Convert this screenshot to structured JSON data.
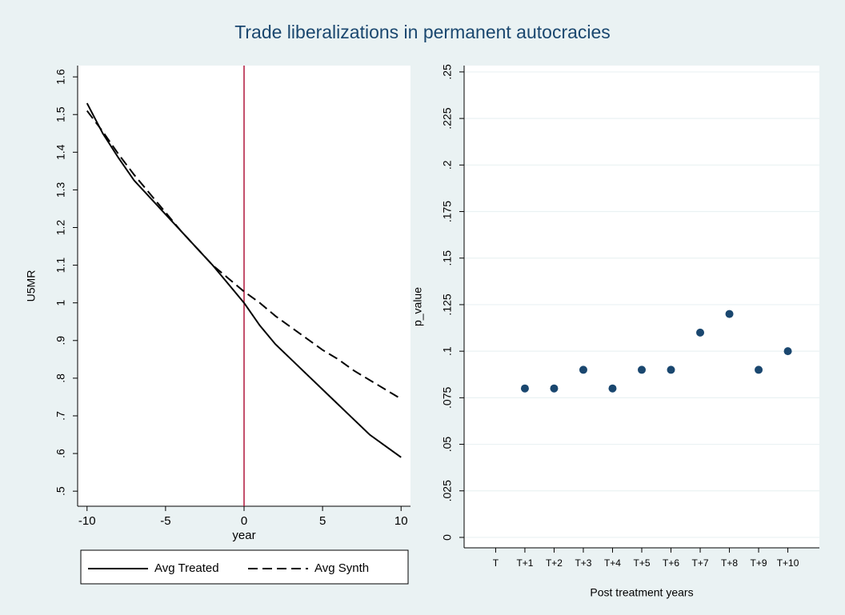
{
  "title": "Trade liberalizations in permanent autocracies",
  "chart_data": [
    {
      "type": "line",
      "x": [
        -10,
        -9,
        -8,
        -7,
        -6,
        -5,
        -4,
        -3,
        -2,
        -1,
        0,
        1,
        2,
        3,
        4,
        5,
        6,
        7,
        8,
        9,
        10
      ],
      "series": [
        {
          "name": "Avg Treated",
          "color": "#000000",
          "style": "solid",
          "values": [
            1.53,
            1.45,
            1.385,
            1.325,
            1.28,
            1.235,
            1.19,
            1.145,
            1.1,
            1.05,
            1.0,
            0.94,
            0.89,
            0.85,
            0.81,
            0.77,
            0.73,
            0.69,
            0.65,
            0.62,
            0.59
          ]
        },
        {
          "name": "Avg Synth",
          "color": "#000000",
          "style": "dashed",
          "values": [
            1.51,
            1.455,
            1.395,
            1.34,
            1.29,
            1.24,
            1.19,
            1.145,
            1.1,
            1.065,
            1.03,
            1.0,
            0.965,
            0.935,
            0.905,
            0.875,
            0.85,
            0.82,
            0.795,
            0.77,
            0.745
          ]
        }
      ],
      "xlabel": "year",
      "ylabel": "U5MR",
      "xlim": [
        -10.6,
        10.6
      ],
      "xticks": [
        -10,
        -5,
        0,
        5,
        10
      ],
      "ylim": [
        0.46,
        1.63
      ],
      "yticks": [
        {
          "value": 0.5,
          "label": ".5"
        },
        {
          "value": 0.6,
          "label": ".6"
        },
        {
          "value": 0.7,
          "label": ".7"
        },
        {
          "value": 0.8,
          "label": ".8"
        },
        {
          "value": 0.9,
          "label": ".9"
        },
        1,
        1.1,
        1.2,
        1.3,
        1.4,
        1.5,
        1.6
      ],
      "xline": 0,
      "xline_color": "#b0173c",
      "grid": false,
      "legend": "bottom"
    },
    {
      "type": "scatter",
      "categories": [
        "T",
        "T+1",
        "T+2",
        "T+3",
        "T+4",
        "T+5",
        "T+6",
        "T+7",
        "T+8",
        "T+9",
        "T+10"
      ],
      "values": [
        null,
        0.08,
        0.08,
        0.09,
        0.08,
        0.09,
        0.09,
        0.11,
        0.12,
        0.09,
        0.1
      ],
      "color": "#1a476f",
      "xlabel": "Post treatment years",
      "ylabel": "p_value",
      "ylim": [
        -0.0056,
        0.2534
      ],
      "yticks": [
        0,
        {
          "value": 0.025,
          "label": ".025"
        },
        {
          "value": 0.05,
          "label": ".05"
        },
        {
          "value": 0.075,
          "label": ".075"
        },
        {
          "value": 0.1,
          "label": ".1"
        },
        {
          "value": 0.125,
          "label": ".125"
        },
        {
          "value": 0.15,
          "label": ".15"
        },
        {
          "value": 0.175,
          "label": ".175"
        },
        {
          "value": 0.2,
          "label": ".2"
        },
        {
          "value": 0.225,
          "label": ".225"
        },
        {
          "value": 0.25,
          "label": ".25"
        }
      ],
      "grid": true
    }
  ]
}
